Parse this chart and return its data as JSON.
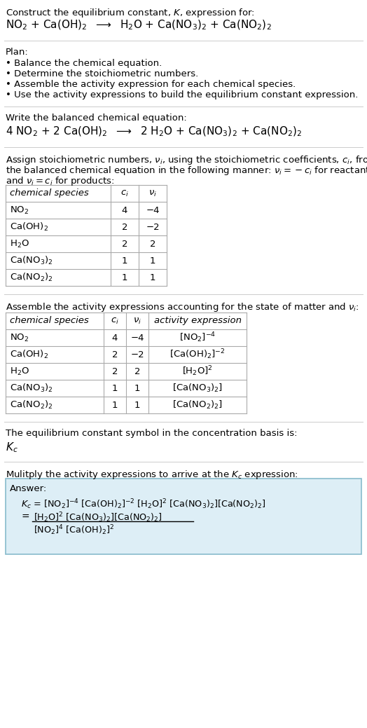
{
  "bg_color": "#ffffff",
  "text_color": "#000000",
  "title_line1": "Construct the equilibrium constant, $K$, expression for:",
  "title_line2": "NO$_2$ + Ca(OH)$_2$  $\\longrightarrow$  H$_2$O + Ca(NO$_3$)$_2$ + Ca(NO$_2$)$_2$",
  "plan_header": "Plan:",
  "plan_bullets": [
    "• Balance the chemical equation.",
    "• Determine the stoichiometric numbers.",
    "• Assemble the activity expression for each chemical species.",
    "• Use the activity expressions to build the equilibrium constant expression."
  ],
  "balanced_header": "Write the balanced chemical equation:",
  "balanced_eq": "4 NO$_2$ + 2 Ca(OH)$_2$  $\\longrightarrow$  2 H$_2$O + Ca(NO$_3$)$_2$ + Ca(NO$_2$)$_2$",
  "stoich_header_line1": "Assign stoichiometric numbers, $\\nu_i$, using the stoichiometric coefficients, $c_i$, from",
  "stoich_header_line2": "the balanced chemical equation in the following manner: $\\nu_i = -c_i$ for reactants",
  "stoich_header_line3": "and $\\nu_i = c_i$ for products:",
  "table1_headers": [
    "chemical species",
    "$c_i$",
    "$\\nu_i$"
  ],
  "table1_rows": [
    [
      "NO$_2$",
      "4",
      "−4"
    ],
    [
      "Ca(OH)$_2$",
      "2",
      "−2"
    ],
    [
      "H$_2$O",
      "2",
      "2"
    ],
    [
      "Ca(NO$_3$)$_2$",
      "1",
      "1"
    ],
    [
      "Ca(NO$_2$)$_2$",
      "1",
      "1"
    ]
  ],
  "activity_header": "Assemble the activity expressions accounting for the state of matter and $\\nu_i$:",
  "table2_headers": [
    "chemical species",
    "$c_i$",
    "$\\nu_i$",
    "activity expression"
  ],
  "table2_rows": [
    [
      "NO$_2$",
      "4",
      "−4",
      "[NO$_2$]$^{-4}$"
    ],
    [
      "Ca(OH)$_2$",
      "2",
      "−2",
      "[Ca(OH)$_2$]$^{-2}$"
    ],
    [
      "H$_2$O",
      "2",
      "2",
      "[H$_2$O]$^2$"
    ],
    [
      "Ca(NO$_3$)$_2$",
      "1",
      "1",
      "[Ca(NO$_3$)$_2$]"
    ],
    [
      "Ca(NO$_2$)$_2$",
      "1",
      "1",
      "[Ca(NO$_2$)$_2$]"
    ]
  ],
  "kc_header": "The equilibrium constant symbol in the concentration basis is:",
  "kc_symbol": "$K_c$",
  "multiply_header": "Mulitply the activity expressions to arrive at the $K_c$ expression:",
  "answer_label": "Answer:",
  "kc_eq_line": "$K_c$ = $[\\mathrm{NO_2}]^{-4}$ $[\\mathrm{Ca(OH)_2}]^{-2}$ $[\\mathrm{H_2O}]^2$ $[\\mathrm{Ca(NO_3)_2}][\\mathrm{Ca(NO_2)_2}]$",
  "frac_num": "$[\\mathrm{H_2O}]^2$ $[\\mathrm{Ca(NO_3)_2}][\\mathrm{Ca(NO_2)_2}]$",
  "frac_den": "$[\\mathrm{NO_2}]^4$ $[\\mathrm{Ca(OH)_2}]^2$",
  "divider_color": "#cccccc",
  "table_line_color": "#aaaaaa",
  "answer_bg": "#ddeef6",
  "answer_border": "#88bbcc"
}
